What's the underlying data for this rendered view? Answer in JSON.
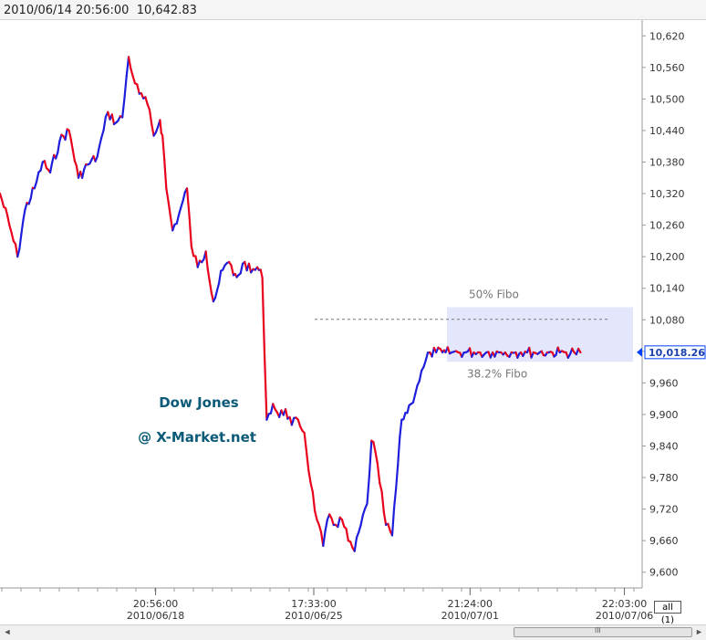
{
  "header": {
    "datetime": "2010/06/14 20:56:00",
    "price": "10,642.83"
  },
  "controls": {
    "all_button": "all (1)"
  },
  "scrollbar": {
    "grip": "III",
    "left_arrow": "◄",
    "right_arrow": "►"
  },
  "colors": {
    "up": "#e8001c",
    "down": "#1e1edc",
    "fibo_zone": "#e4e6fb",
    "accent": "#003fff",
    "label_text": "#0a5a78"
  },
  "chart_data": {
    "type": "line",
    "title": "",
    "watermark": [
      "Dow Jones",
      "@ X-Market.net"
    ],
    "ylim": [
      9570,
      10650
    ],
    "y_ticks": [
      10620,
      10560,
      10500,
      10440,
      10380,
      10320,
      10260,
      10200,
      10140,
      10080,
      10020,
      9960,
      9900,
      9840,
      9780,
      9720,
      9660,
      9600
    ],
    "y_tick_labels": [
      "10,620",
      "10,560",
      "10,500",
      "10,440",
      "10,380",
      "10,320",
      "10,260",
      "10,200",
      "10,140",
      "10,080",
      "",
      "9,960",
      "9,900",
      "9,840",
      "9,780",
      "9,720",
      "9,660",
      "9,600"
    ],
    "x_ticks": [
      {
        "time": "20:56:00",
        "date": "2010/06/18",
        "pos": 0.248
      },
      {
        "time": "17:33:00",
        "date": "2010/06/25",
        "pos": 0.5
      },
      {
        "time": "21:24:00",
        "date": "2010/07/01",
        "pos": 0.749
      },
      {
        "time": "22:03:00",
        "date": "2010/07/06",
        "pos": 0.995
      }
    ],
    "last_price": {
      "label": "10,018.26",
      "value": 10018.26
    },
    "fibo": {
      "upper": {
        "label": "50% Fibo",
        "value": 10104
      },
      "lower": {
        "label": "38.2% Fibo",
        "value": 10000
      },
      "dashed_value": 10081,
      "dashed_from": 0.49
    },
    "series": [
      {
        "x": [
          0.0,
          0.015,
          0.028,
          0.04,
          0.055,
          0.068,
          0.08,
          0.095,
          0.11,
          0.125,
          0.14,
          0.155,
          0.165,
          0.172,
          0.185,
          0.195,
          0.205,
          0.215,
          0.222,
          0.235,
          0.245,
          0.255,
          0.259,
          0.265,
          0.275,
          0.285,
          0.298,
          0.305,
          0.315,
          0.328,
          0.34,
          0.355,
          0.365,
          0.372,
          0.38,
          0.39,
          0.4,
          0.41,
          0.418,
          0.425,
          0.435,
          0.445,
          0.455,
          0.465,
          0.475,
          0.485,
          0.495,
          0.505,
          0.515,
          0.525,
          0.535,
          0.545,
          0.555,
          0.565,
          0.575,
          0.585,
          0.592,
          0.598,
          0.605,
          0.615,
          0.625,
          0.64,
          0.655,
          0.665,
          0.675,
          0.685,
          0.695,
          0.705,
          0.71,
          0.72,
          0.73,
          0.742,
          0.755,
          0.765,
          0.775,
          0.785,
          0.795,
          0.805,
          0.815,
          0.822,
          0.83,
          0.84,
          0.85,
          0.86,
          0.872,
          0.88,
          0.892,
          0.902,
          0.915,
          0.925
        ],
        "y": [
          10320,
          10260,
          10200,
          10290,
          10330,
          10380,
          10360,
          10420,
          10440,
          10350,
          10375,
          10390,
          10440,
          10475,
          10455,
          10465,
          10580,
          10530,
          10510,
          10490,
          10430,
          10460,
          10430,
          10330,
          10250,
          10280,
          10330,
          10220,
          10180,
          10210,
          10115,
          10175,
          10190,
          10165,
          10165,
          10190,
          10170,
          10180,
          10160,
          9890,
          9920,
          9895,
          9910,
          9880,
          9890,
          9865,
          9770,
          9700,
          9650,
          9710,
          9690,
          9700,
          9660,
          9640,
          9690,
          9730,
          9850,
          9830,
          9770,
          9690,
          9670,
          9890,
          9920,
          9955,
          9990,
          10018,
          10018,
          10018,
          10018,
          10018,
          10018,
          10018,
          10018,
          10018,
          10018,
          10018,
          10018,
          10018,
          10018,
          10018,
          10018,
          10018,
          10018,
          10018,
          10018,
          10018,
          10018,
          10018,
          10018,
          10018
        ]
      }
    ]
  }
}
